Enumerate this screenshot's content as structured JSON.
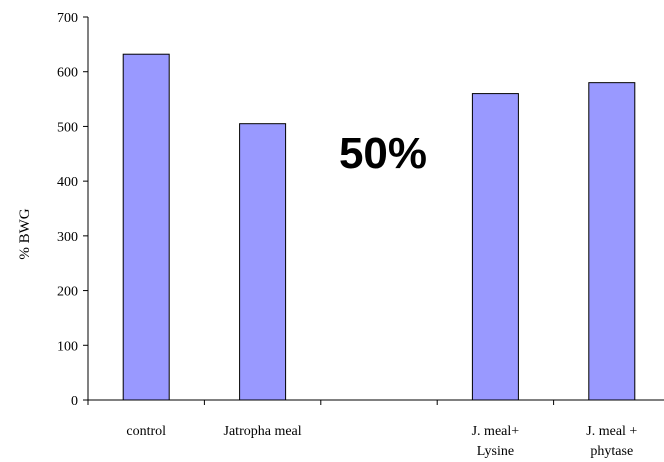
{
  "chart_data": {
    "type": "bar",
    "categories": [
      "control",
      "Jatropha meal",
      "",
      "J. meal+\nLysine",
      "J. meal +\nphytase"
    ],
    "values": [
      632,
      505,
      null,
      560,
      580
    ],
    "ylabel": "% BWG",
    "xlabel": "",
    "ylim": [
      0,
      700
    ],
    "yticks": [
      0,
      100,
      200,
      300,
      400,
      500,
      600,
      700
    ],
    "annotation": "50%",
    "bar_color": "#9999ff",
    "bar_edge_color": "#000000",
    "grid": false,
    "legend": "none"
  }
}
